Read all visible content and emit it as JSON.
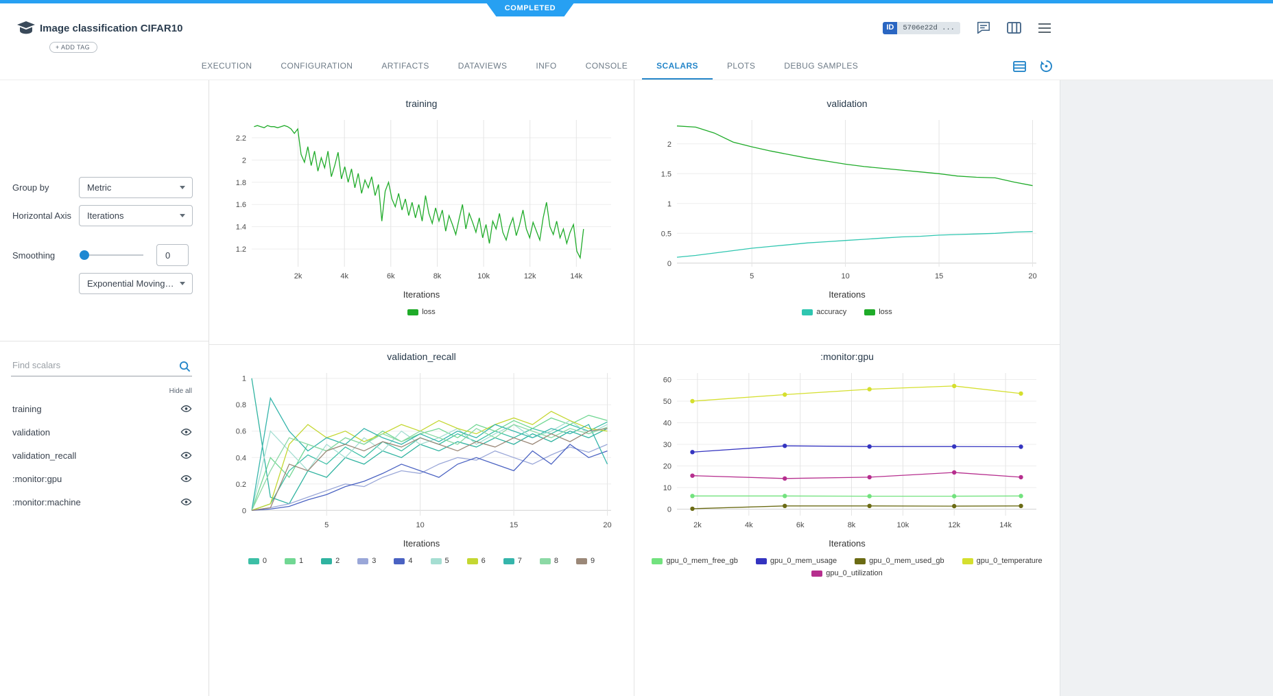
{
  "status_ribbon": {
    "label": "COMPLETED"
  },
  "header": {
    "title": "Image classification CIFAR10",
    "add_tag_label": "+ ADD TAG",
    "id_badge": {
      "label": "ID",
      "value": "5706e22d ..."
    }
  },
  "tabs": {
    "items": [
      {
        "label": "EXECUTION"
      },
      {
        "label": "CONFIGURATION"
      },
      {
        "label": "ARTIFACTS"
      },
      {
        "label": "DATAVIEWS"
      },
      {
        "label": "INFO"
      },
      {
        "label": "CONSOLE"
      },
      {
        "label": "SCALARS",
        "active": true
      },
      {
        "label": "PLOTS"
      },
      {
        "label": "DEBUG SAMPLES"
      }
    ]
  },
  "sidebar": {
    "group_by": {
      "label": "Group by",
      "value": "Metric"
    },
    "horizontal_axis": {
      "label": "Horizontal Axis",
      "value": "Iterations"
    },
    "smoothing": {
      "label": "Smoothing",
      "value": "0",
      "type": "Exponential Moving Av..."
    },
    "search": {
      "placeholder": "Find scalars"
    },
    "hide_all_label": "Hide all",
    "metrics": [
      {
        "label": "training"
      },
      {
        "label": "validation"
      },
      {
        "label": "validation_recall"
      },
      {
        "label": ":monitor:gpu"
      },
      {
        "label": ":monitor:machine"
      }
    ]
  },
  "colors": {
    "accent_blue": "#2586c9",
    "status_blue": "#27a0f2"
  },
  "chart_data": [
    {
      "type": "line",
      "title": "training",
      "xlabel": "Iterations",
      "xlim": [
        0,
        15500
      ],
      "ylim": [
        1.04,
        2.36
      ],
      "xticks": [
        {
          "v": 2000,
          "label": "2k"
        },
        {
          "v": 4000,
          "label": "4k"
        },
        {
          "v": 6000,
          "label": "6k"
        },
        {
          "v": 8000,
          "label": "8k"
        },
        {
          "v": 10000,
          "label": "10k"
        },
        {
          "v": 12000,
          "label": "12k"
        },
        {
          "v": 14000,
          "label": "14k"
        }
      ],
      "yticks": [
        {
          "v": 1.2,
          "label": "1.2"
        },
        {
          "v": 1.4,
          "label": "1.4"
        },
        {
          "v": 1.6,
          "label": "1.6"
        },
        {
          "v": 1.8,
          "label": "1.8"
        },
        {
          "v": 2,
          "label": "2"
        },
        {
          "v": 2.2,
          "label": "2.2"
        }
      ],
      "series": [
        {
          "name": "loss",
          "color": "#1fab29",
          "x0": 100,
          "dx": 145,
          "y": [
            2.3,
            2.31,
            2.3,
            2.29,
            2.31,
            2.3,
            2.3,
            2.29,
            2.3,
            2.31,
            2.3,
            2.28,
            2.24,
            2.28,
            2.05,
            1.98,
            2.12,
            1.95,
            2.08,
            1.9,
            2.02,
            1.93,
            2.08,
            1.85,
            1.95,
            2.07,
            1.83,
            1.94,
            1.8,
            1.92,
            1.75,
            1.88,
            1.7,
            1.82,
            1.75,
            1.85,
            1.68,
            1.78,
            1.45,
            1.72,
            1.8,
            1.65,
            1.58,
            1.7,
            1.55,
            1.65,
            1.5,
            1.62,
            1.48,
            1.6,
            1.45,
            1.68,
            1.52,
            1.43,
            1.57,
            1.45,
            1.55,
            1.36,
            1.5,
            1.42,
            1.33,
            1.47,
            1.6,
            1.38,
            1.52,
            1.44,
            1.35,
            1.48,
            1.3,
            1.42,
            1.25,
            1.45,
            1.38,
            1.52,
            1.35,
            1.28,
            1.4,
            1.48,
            1.32,
            1.42,
            1.55,
            1.38,
            1.3,
            1.44,
            1.36,
            1.28,
            1.48,
            1.62,
            1.4,
            1.33,
            1.45,
            1.3,
            1.38,
            1.25,
            1.35,
            1.42,
            1.18,
            1.12,
            1.38
          ]
        }
      ]
    },
    {
      "type": "line",
      "title": "validation",
      "xlabel": "Iterations",
      "xlim": [
        1,
        20.2
      ],
      "ylim": [
        -0.06,
        2.4
      ],
      "xticks": [
        {
          "v": 5,
          "label": "5"
        },
        {
          "v": 10,
          "label": "10"
        },
        {
          "v": 15,
          "label": "15"
        },
        {
          "v": 20,
          "label": "20"
        }
      ],
      "yticks": [
        {
          "v": 0,
          "label": "0"
        },
        {
          "v": 0.5,
          "label": "0.5"
        },
        {
          "v": 1,
          "label": "1"
        },
        {
          "v": 1.5,
          "label": "1.5"
        },
        {
          "v": 2,
          "label": "2"
        }
      ],
      "series": [
        {
          "name": "accuracy",
          "color": "#2fc6b0",
          "x0": 1,
          "dx": 1,
          "y": [
            0.1,
            0.13,
            0.17,
            0.21,
            0.25,
            0.28,
            0.31,
            0.34,
            0.36,
            0.38,
            0.4,
            0.42,
            0.44,
            0.45,
            0.47,
            0.48,
            0.49,
            0.5,
            0.52,
            0.53
          ]
        },
        {
          "name": "loss",
          "color": "#1fab29",
          "x0": 1,
          "dx": 1,
          "y": [
            2.3,
            2.28,
            2.18,
            2.03,
            1.95,
            1.88,
            1.82,
            1.76,
            1.71,
            1.66,
            1.62,
            1.59,
            1.56,
            1.53,
            1.5,
            1.46,
            1.44,
            1.43,
            1.36,
            1.3
          ]
        }
      ]
    },
    {
      "type": "line",
      "title": "validation_recall",
      "xlabel": "Iterations",
      "xlim": [
        1,
        20.2
      ],
      "ylim": [
        -0.04,
        1.04
      ],
      "xticks": [
        {
          "v": 5,
          "label": "5"
        },
        {
          "v": 10,
          "label": "10"
        },
        {
          "v": 15,
          "label": "15"
        },
        {
          "v": 20,
          "label": "20"
        }
      ],
      "yticks": [
        {
          "v": 0,
          "label": "0"
        },
        {
          "v": 0.2,
          "label": "0.2"
        },
        {
          "v": 0.4,
          "label": "0.4"
        },
        {
          "v": 0.6,
          "label": "0.6"
        },
        {
          "v": 0.8,
          "label": "0.8"
        },
        {
          "v": 1,
          "label": "1"
        }
      ],
      "series": [
        {
          "name": "0",
          "color": "#3cbfa6",
          "x0": 1,
          "dx": 1,
          "y": [
            0,
            0.05,
            0.3,
            0.42,
            0.35,
            0.48,
            0.4,
            0.52,
            0.45,
            0.55,
            0.5,
            0.58,
            0.52,
            0.6,
            0.55,
            0.62,
            0.58,
            0.65,
            0.6,
            0.67
          ]
        },
        {
          "name": "1",
          "color": "#71d793",
          "x0": 1,
          "dx": 1,
          "y": [
            0,
            0.4,
            0.25,
            0.5,
            0.45,
            0.55,
            0.5,
            0.6,
            0.52,
            0.58,
            0.62,
            0.55,
            0.65,
            0.6,
            0.68,
            0.62,
            0.7,
            0.65,
            0.72,
            0.68
          ]
        },
        {
          "name": "2",
          "color": "#2fb3a0",
          "x0": 1,
          "dx": 1,
          "y": [
            1,
            0.1,
            0.05,
            0.3,
            0.25,
            0.4,
            0.35,
            0.45,
            0.4,
            0.5,
            0.45,
            0.52,
            0.48,
            0.55,
            0.5,
            0.58,
            0.52,
            0.6,
            0.55,
            0.62
          ]
        },
        {
          "name": "3",
          "color": "#9aa7d8",
          "x0": 1,
          "dx": 1,
          "y": [
            0,
            0.02,
            0.05,
            0.1,
            0.15,
            0.2,
            0.18,
            0.25,
            0.3,
            0.28,
            0.35,
            0.4,
            0.38,
            0.45,
            0.4,
            0.35,
            0.42,
            0.48,
            0.44,
            0.5
          ]
        },
        {
          "name": "4",
          "color": "#4a62c2",
          "x0": 1,
          "dx": 1,
          "y": [
            0,
            0.01,
            0.03,
            0.08,
            0.12,
            0.18,
            0.22,
            0.28,
            0.35,
            0.3,
            0.25,
            0.35,
            0.4,
            0.35,
            0.3,
            0.45,
            0.35,
            0.5,
            0.4,
            0.45
          ]
        },
        {
          "name": "5",
          "color": "#a5ded2",
          "x0": 1,
          "dx": 1,
          "y": [
            0,
            0.6,
            0.45,
            0.3,
            0.5,
            0.4,
            0.55,
            0.45,
            0.6,
            0.5,
            0.55,
            0.62,
            0.5,
            0.58,
            0.65,
            0.55,
            0.6,
            0.68,
            0.58,
            0.65
          ]
        },
        {
          "name": "6",
          "color": "#c4d732",
          "x0": 1,
          "dx": 1,
          "y": [
            0,
            0.05,
            0.5,
            0.65,
            0.55,
            0.6,
            0.52,
            0.58,
            0.65,
            0.6,
            0.68,
            0.62,
            0.58,
            0.65,
            0.7,
            0.65,
            0.75,
            0.68,
            0.62,
            0.6
          ]
        },
        {
          "name": "7",
          "color": "#35b5ab",
          "x0": 1,
          "dx": 1,
          "y": [
            0,
            0.85,
            0.6,
            0.45,
            0.55,
            0.5,
            0.62,
            0.55,
            0.5,
            0.58,
            0.52,
            0.6,
            0.55,
            0.65,
            0.6,
            0.55,
            0.62,
            0.58,
            0.65,
            0.35
          ]
        },
        {
          "name": "8",
          "color": "#8cd9a5",
          "x0": 1,
          "dx": 1,
          "y": [
            0,
            0.3,
            0.55,
            0.5,
            0.45,
            0.55,
            0.5,
            0.58,
            0.52,
            0.6,
            0.55,
            0.5,
            0.62,
            0.55,
            0.65,
            0.6,
            0.55,
            0.62,
            0.58,
            0.63
          ]
        },
        {
          "name": "9",
          "color": "#9b8878",
          "x0": 1,
          "dx": 1,
          "y": [
            0,
            0.02,
            0.35,
            0.3,
            0.45,
            0.5,
            0.45,
            0.52,
            0.48,
            0.55,
            0.5,
            0.45,
            0.52,
            0.48,
            0.55,
            0.5,
            0.58,
            0.52,
            0.6,
            0.62
          ]
        }
      ]
    },
    {
      "type": "line",
      "title": ":monitor:gpu",
      "xlabel": "Iterations",
      "xlim": [
        1200,
        15200
      ],
      "ylim": [
        -3,
        63
      ],
      "xticks": [
        {
          "v": 2000,
          "label": "2k"
        },
        {
          "v": 4000,
          "label": "4k"
        },
        {
          "v": 6000,
          "label": "6k"
        },
        {
          "v": 8000,
          "label": "8k"
        },
        {
          "v": 10000,
          "label": "10k"
        },
        {
          "v": 12000,
          "label": "12k"
        },
        {
          "v": 14000,
          "label": "14k"
        }
      ],
      "yticks": [
        {
          "v": 0,
          "label": "0"
        },
        {
          "v": 10,
          "label": "10"
        },
        {
          "v": 20,
          "label": "20"
        },
        {
          "v": 30,
          "label": "30"
        },
        {
          "v": 40,
          "label": "40"
        },
        {
          "v": 50,
          "label": "50"
        },
        {
          "v": 60,
          "label": "60"
        }
      ],
      "series": [
        {
          "name": "gpu_0_mem_free_gb",
          "color": "#72e27e",
          "markers": true,
          "x": [
            1800,
            5400,
            8700,
            12000,
            14600
          ],
          "y": [
            6.1,
            6.1,
            6.0,
            6.0,
            6.1
          ]
        },
        {
          "name": "gpu_0_mem_usage",
          "color": "#3434c0",
          "markers": true,
          "x": [
            1800,
            5400,
            8700,
            12000,
            14600
          ],
          "y": [
            26.4,
            29.3,
            29.0,
            29.0,
            28.9
          ]
        },
        {
          "name": "gpu_0_mem_used_gb",
          "color": "#6b6b14",
          "markers": true,
          "x": [
            1800,
            5400,
            8700,
            12000,
            14600
          ],
          "y": [
            0.2,
            1.5,
            1.5,
            1.4,
            1.5
          ]
        },
        {
          "name": "gpu_0_temperature",
          "color": "#d5df2e",
          "markers": true,
          "x": [
            1800,
            5400,
            8700,
            12000,
            14600
          ],
          "y": [
            50,
            53,
            55.5,
            57,
            53.5
          ]
        },
        {
          "name": "gpu_0_utilization",
          "color": "#b62e8e",
          "markers": true,
          "x": [
            1800,
            5400,
            8700,
            12000,
            14600
          ],
          "y": [
            15.5,
            14.2,
            14.8,
            17,
            14.8
          ]
        }
      ]
    }
  ]
}
